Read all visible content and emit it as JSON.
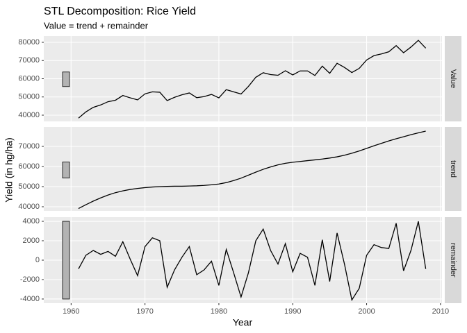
{
  "chart_data": {
    "type": "line",
    "title": "STL Decomposition: Rice Yield",
    "subtitle": "Value = trend + remainder",
    "x_label": "Year",
    "y_label": "Yield (in hg/ha)",
    "color": "#000000",
    "scale_bar_color": "#b3b3b3",
    "grid": true,
    "xlim": [
      1956.3,
      2010.2
    ],
    "xticks": [
      1960,
      1970,
      1980,
      1990,
      2000,
      2010
    ],
    "x": [
      1961,
      1962,
      1963,
      1964,
      1965,
      1966,
      1967,
      1968,
      1969,
      1970,
      1971,
      1972,
      1973,
      1974,
      1975,
      1976,
      1977,
      1978,
      1979,
      1980,
      1981,
      1982,
      1983,
      1984,
      1985,
      1986,
      1987,
      1988,
      1989,
      1990,
      1991,
      1992,
      1993,
      1994,
      1995,
      1996,
      1997,
      1998,
      1999,
      2000,
      2001,
      2002,
      2003,
      2004,
      2005,
      2006,
      2007,
      2008
    ],
    "series": [
      {
        "name": "Value",
        "ylim": [
          36570,
          83430
        ],
        "yticks": [
          40000,
          50000,
          60000,
          70000,
          80000
        ],
        "scale_bar": [
          55700,
          63700
        ],
        "values": [
          38400,
          41800,
          44300,
          45600,
          47400,
          48200,
          50800,
          49500,
          48400,
          51700,
          52800,
          52600,
          48000,
          49800,
          51200,
          52200,
          49600,
          50200,
          51400,
          49500,
          54000,
          52800,
          51600,
          55800,
          60800,
          63300,
          62300,
          61900,
          64400,
          62100,
          64300,
          64300,
          61800,
          66900,
          63000,
          68500,
          66200,
          63400,
          65700,
          70300,
          72700,
          73600,
          74800,
          78200,
          74300,
          77400,
          81100,
          76800
        ]
      },
      {
        "name": "trend",
        "ylim": [
          37930,
          79650
        ],
        "yticks": [
          40000,
          50000,
          60000,
          70000
        ],
        "scale_bar": [
          54250,
          62250
        ],
        "values": [
          39100,
          41000,
          42800,
          44400,
          45800,
          47000,
          47900,
          48600,
          49100,
          49500,
          49800,
          50000,
          50100,
          50200,
          50200,
          50300,
          50400,
          50600,
          50900,
          51300,
          52000,
          53000,
          54200,
          55700,
          57200,
          58600,
          59800,
          60800,
          61600,
          62100,
          62500,
          62900,
          63300,
          63700,
          64200,
          64800,
          65600,
          66600,
          67700,
          69000,
          70300,
          71500,
          72700,
          73800,
          74800,
          75800,
          76700,
          77600
        ]
      },
      {
        "name": "remainder",
        "ylim": [
          -4430,
          4430
        ],
        "yticks": [
          -4000,
          -2000,
          0,
          2000,
          4000
        ],
        "scale_bar": [
          -4000,
          4000
        ],
        "values": [
          -900,
          500,
          1000,
          600,
          900,
          400,
          1900,
          100,
          -1600,
          1400,
          2300,
          2000,
          -2800,
          -1000,
          300,
          1400,
          -1500,
          -1000,
          -100,
          -2600,
          1100,
          -1300,
          -3800,
          -1300,
          2000,
          3200,
          1000,
          -400,
          1700,
          -1200,
          700,
          300,
          -2600,
          2100,
          -2200,
          2800,
          -400,
          -4100,
          -2900,
          500,
          1600,
          1300,
          1200,
          3800,
          -1100,
          1000,
          4000,
          -900
        ]
      }
    ]
  }
}
